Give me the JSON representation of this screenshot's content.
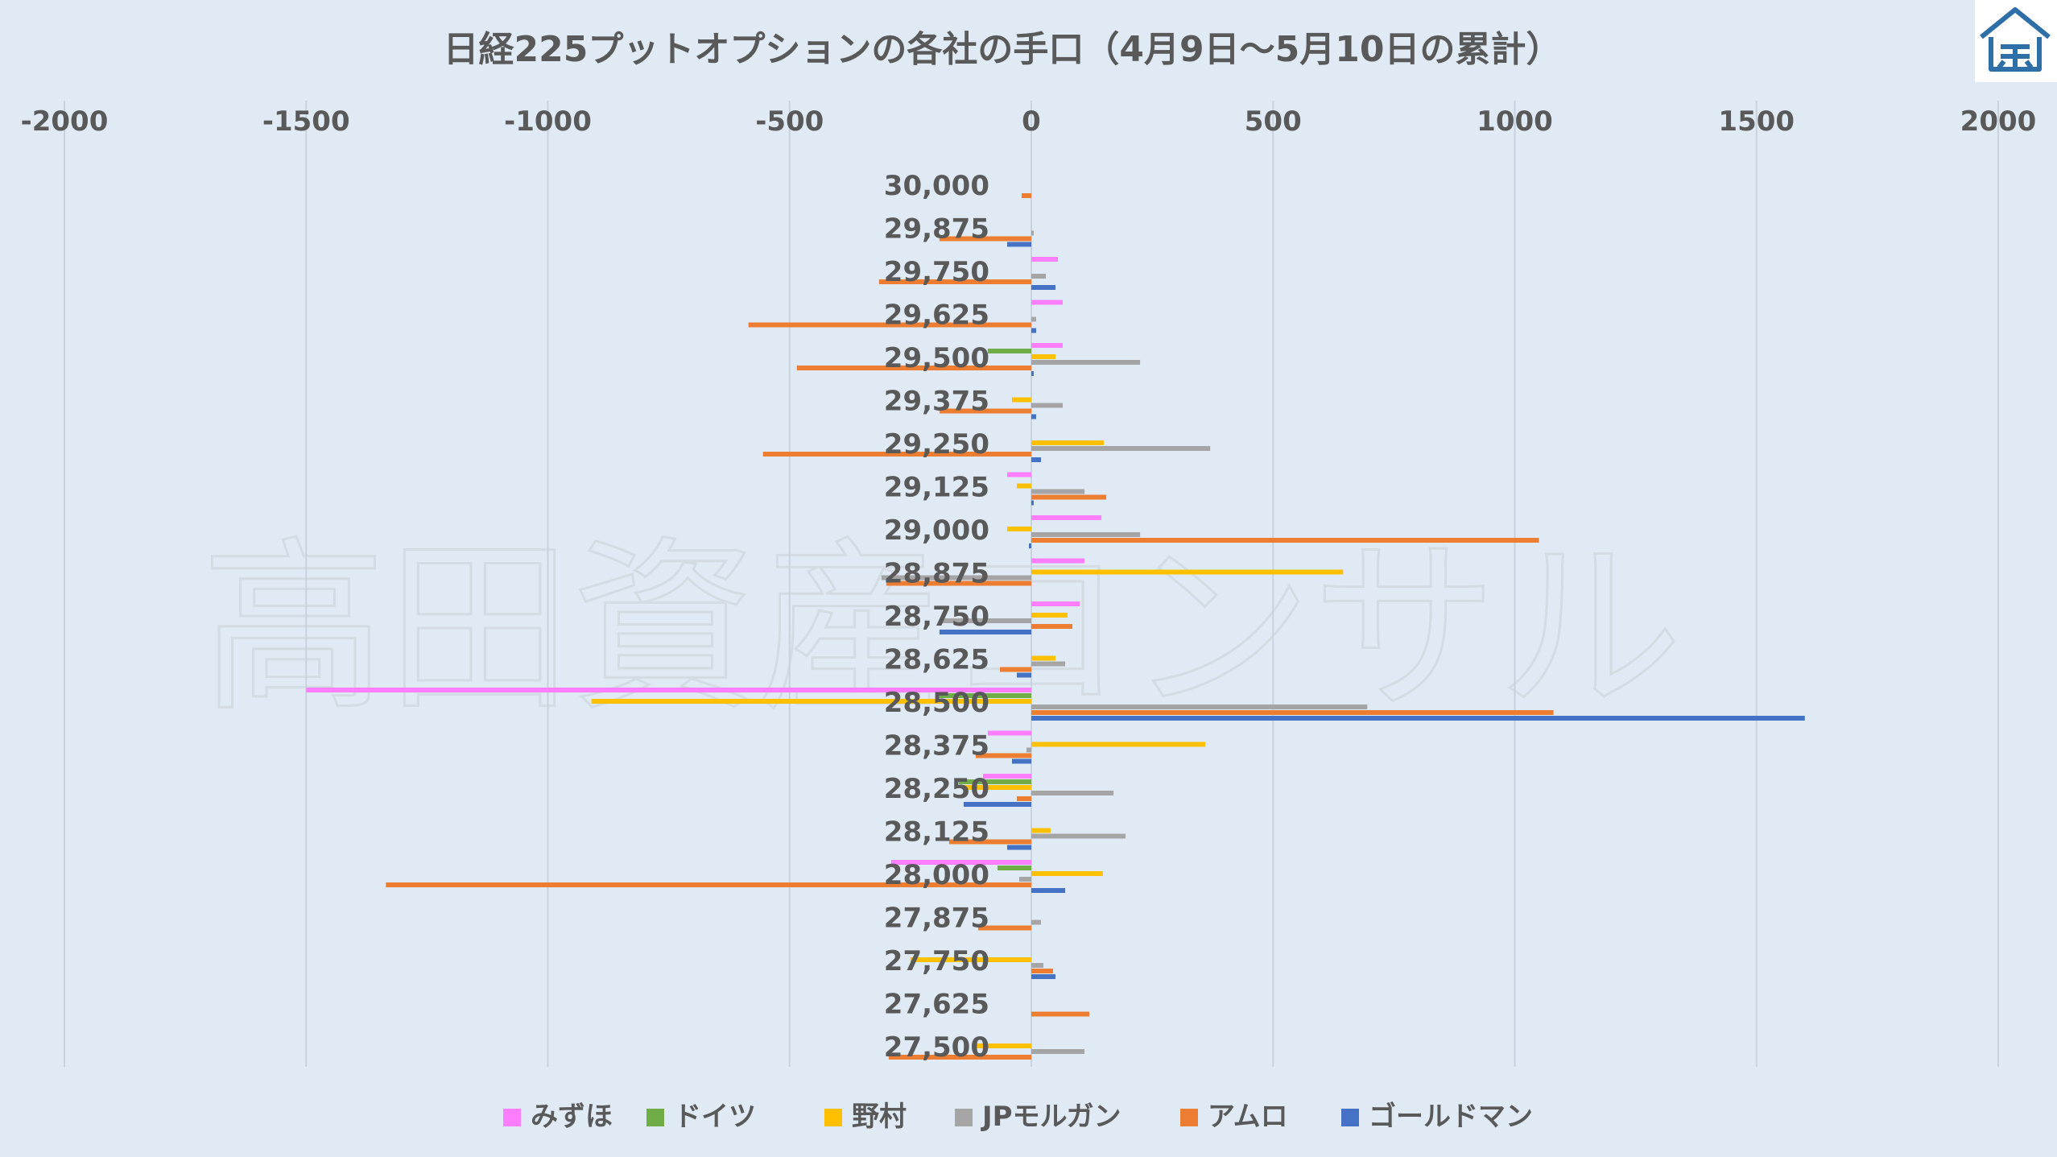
{
  "watermark": "高田資産コンサル",
  "chart_data": {
    "type": "bar",
    "orientation": "horizontal",
    "title": "日経225プットオプションの各社の手口（4月9日～5月10日の累計）",
    "xlim": [
      -2000,
      2000
    ],
    "x_ticks": [
      "-2000",
      "-1500",
      "-1000",
      "-500",
      "0",
      "500",
      "1000",
      "1500",
      "2000"
    ],
    "x_tick_values": [
      -2000,
      -1500,
      -1000,
      -500,
      0,
      500,
      1000,
      1500,
      2000
    ],
    "grid": true,
    "legend_position": "bottom",
    "categories": [
      "30,000",
      "29,875",
      "29,750",
      "29,625",
      "29,500",
      "29,375",
      "29,250",
      "29,125",
      "29,000",
      "28,875",
      "28,750",
      "28,625",
      "28,500",
      "28,375",
      "28,250",
      "28,125",
      "28,000",
      "27,875",
      "27,750",
      "27,625",
      "27,500"
    ],
    "series": [
      {
        "name": "みずほ",
        "color": "#ff7eff",
        "values": [
          0,
          0,
          55,
          65,
          65,
          0,
          0,
          -50,
          145,
          110,
          100,
          0,
          -1500,
          -90,
          -100,
          0,
          -290,
          0,
          0,
          0,
          0
        ]
      },
      {
        "name": "ドイツ",
        "color": "#70ad47",
        "values": [
          0,
          0,
          0,
          0,
          -90,
          0,
          0,
          0,
          0,
          0,
          0,
          0,
          -190,
          0,
          -150,
          0,
          -70,
          0,
          0,
          0,
          0
        ]
      },
      {
        "name": "野村",
        "color": "#ffc000",
        "values": [
          0,
          0,
          0,
          0,
          50,
          -40,
          150,
          -30,
          -50,
          645,
          75,
          50,
          -910,
          360,
          -140,
          40,
          148,
          0,
          -250,
          0,
          -120
        ]
      },
      {
        "name": "JPモルガン",
        "color": "#a5a5a5",
        "values": [
          0,
          5,
          30,
          10,
          225,
          65,
          370,
          110,
          225,
          -310,
          -190,
          70,
          695,
          -10,
          170,
          195,
          -25,
          20,
          25,
          0,
          110
        ]
      },
      {
        "name": "アムロ",
        "color": "#ed7d31",
        "values": [
          -20,
          -190,
          -315,
          -585,
          -485,
          -190,
          -555,
          155,
          1050,
          -300,
          85,
          -65,
          1080,
          -115,
          -30,
          -170,
          -1335,
          -110,
          45,
          120,
          -295
        ]
      },
      {
        "name": "ゴールドマン",
        "color": "#4472c4",
        "values": [
          0,
          -50,
          50,
          10,
          5,
          10,
          20,
          5,
          -5,
          0,
          -190,
          -30,
          1600,
          -40,
          -140,
          -50,
          70,
          0,
          50,
          0,
          0
        ]
      }
    ]
  },
  "logo": {
    "name": "takata-logo",
    "color": "#2f6fa8"
  }
}
